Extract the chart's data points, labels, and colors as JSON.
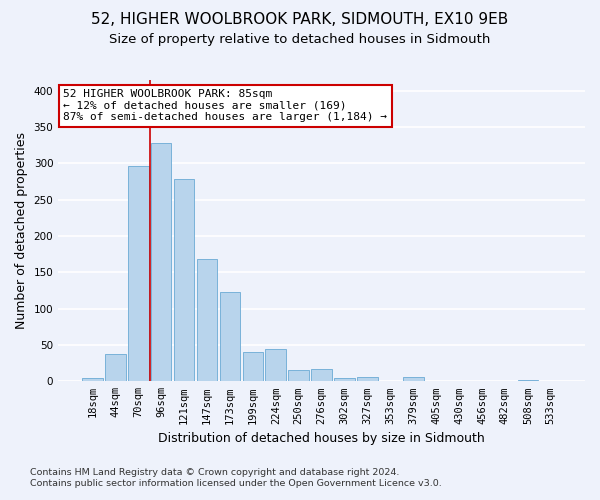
{
  "title": "52, HIGHER WOOLBROOK PARK, SIDMOUTH, EX10 9EB",
  "subtitle": "Size of property relative to detached houses in Sidmouth",
  "xlabel": "Distribution of detached houses by size in Sidmouth",
  "ylabel": "Number of detached properties",
  "footer_line1": "Contains HM Land Registry data © Crown copyright and database right 2024.",
  "footer_line2": "Contains public sector information licensed under the Open Government Licence v3.0.",
  "bin_labels": [
    "18sqm",
    "44sqm",
    "70sqm",
    "96sqm",
    "121sqm",
    "147sqm",
    "173sqm",
    "199sqm",
    "224sqm",
    "250sqm",
    "276sqm",
    "302sqm",
    "327sqm",
    "353sqm",
    "379sqm",
    "405sqm",
    "430sqm",
    "456sqm",
    "482sqm",
    "508sqm",
    "533sqm"
  ],
  "bar_heights": [
    5,
    37,
    297,
    328,
    279,
    169,
    123,
    40,
    45,
    16,
    17,
    5,
    6,
    0,
    6,
    0,
    0,
    0,
    0,
    2,
    0
  ],
  "bar_color": "#b8d4ec",
  "bar_edge_color": "#6aaad4",
  "highlight_color": "#cc0000",
  "annotation_title": "52 HIGHER WOOLBROOK PARK: 85sqm",
  "annotation_line1": "← 12% of detached houses are smaller (169)",
  "annotation_line2": "87% of semi-detached houses are larger (1,184) →",
  "annotation_box_color": "#ffffff",
  "annotation_box_edge": "#cc0000",
  "ylim": [
    0,
    415
  ],
  "yticks": [
    0,
    50,
    100,
    150,
    200,
    250,
    300,
    350,
    400
  ],
  "bg_color": "#eef2fb",
  "grid_color": "#ffffff",
  "title_fontsize": 11,
  "subtitle_fontsize": 9.5,
  "axis_label_fontsize": 9,
  "tick_fontsize": 7.5,
  "footer_fontsize": 6.8
}
